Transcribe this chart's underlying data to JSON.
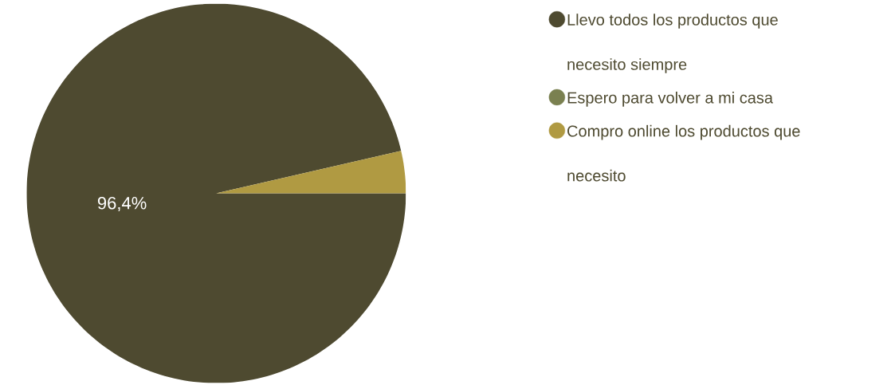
{
  "chart_data": {
    "type": "pie",
    "categories": [
      "Llevo todos los productos que necesito siempre",
      "Espero para volver a mi casa",
      "Compro online los productos que necesito"
    ],
    "values": [
      96.4,
      0,
      3.6
    ],
    "colors": [
      "#4e4a30",
      "#7a8050",
      "#b09a42"
    ],
    "value_labels": [
      "96,4%",
      null,
      null
    ],
    "legend": "right"
  }
}
